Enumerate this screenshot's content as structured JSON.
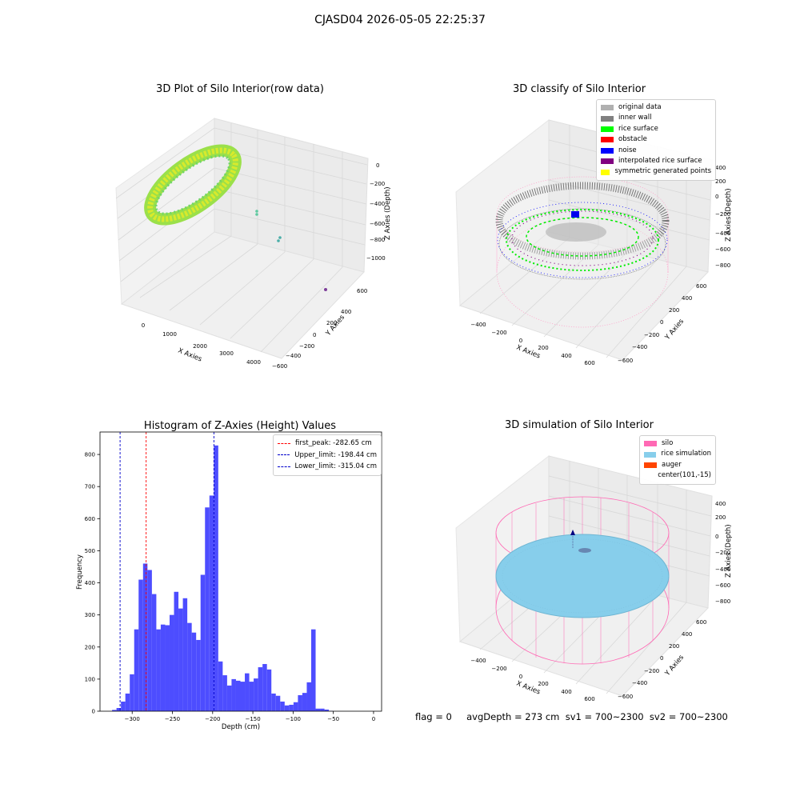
{
  "suptitle": "CJASD04 2026-05-05 22:25:37",
  "panels": {
    "raw": {
      "title": "3D Plot of Silo Interior(row data)",
      "xlabel": "X Axies",
      "ylabel": "Y Axies",
      "zlabel": "Z Axies (Depth)",
      "xticks": [
        "0",
        "1000",
        "2000",
        "3000",
        "4000"
      ],
      "yticks": [
        "600",
        "400",
        "200",
        "0",
        "−200",
        "−400",
        "−600"
      ],
      "zticks": [
        "0",
        "−200",
        "−400",
        "−600",
        "−800",
        "−1000"
      ]
    },
    "classify": {
      "title": "3D classify of Silo Interior",
      "xlabel": "X Axies",
      "ylabel": "Y Axies",
      "zlabel": "Z Axies (Depth)",
      "xticks": [
        "−400",
        "−200",
        "0",
        "200",
        "400",
        "600"
      ],
      "yticks": [
        "600",
        "400",
        "200",
        "0",
        "−200",
        "−400",
        "−600"
      ],
      "zticks": [
        "400",
        "200",
        "0",
        "−200",
        "−400",
        "−600",
        "−800"
      ],
      "legend": [
        {
          "label": "original data",
          "color": "#b0b0b0"
        },
        {
          "label": "inner wall",
          "color": "#808080"
        },
        {
          "label": "rice surface",
          "color": "#00ff00"
        },
        {
          "label": "obstacle",
          "color": "#ff0000"
        },
        {
          "label": "noise",
          "color": "#0000ff"
        },
        {
          "label": "interpolated rice surface",
          "color": "#800080"
        },
        {
          "label": "symmetric generated points",
          "color": "#ffff00"
        }
      ]
    },
    "simulation": {
      "title": "3D simulation of Silo Interior",
      "xlabel": "X Axies",
      "ylabel": "Y Axies",
      "zlabel": "Z Axies (Depth)",
      "xticks": [
        "−400",
        "−200",
        "0",
        "200",
        "400",
        "600"
      ],
      "yticks": [
        "600",
        "400",
        "200",
        "0",
        "−200",
        "−400",
        "−600"
      ],
      "zticks": [
        "400",
        "200",
        "0",
        "−200",
        "−400",
        "−600",
        "−800"
      ],
      "legend": [
        {
          "label": "silo",
          "color": "#ff69b4"
        },
        {
          "label": "rice simulation",
          "color": "#87ceeb"
        },
        {
          "label": "auger",
          "color": "#ff4500"
        },
        {
          "label": "center(101,-15)",
          "color": ""
        }
      ]
    }
  },
  "footer": {
    "text": "flag = 0     avgDepth = 273 cm  sv1 = 700~2300  sv2 = 700~2300"
  },
  "chart_data": [
    {
      "type": "heatmap",
      "title": "3D Plot of Silo Interior(row data)",
      "xlabel": "X Axies",
      "ylabel": "Y Axies",
      "zlabel": "Z Axies (Depth)",
      "xlim": [
        -400,
        4400
      ],
      "ylim": [
        -700,
        700
      ],
      "zlim": [
        -1100,
        50
      ]
    },
    {
      "type": "scatter",
      "title": "3D classify of Silo Interior",
      "xlabel": "X Axies",
      "ylabel": "Y Axies",
      "zlabel": "Z Axies (Depth)",
      "xlim": [
        -550,
        750
      ],
      "ylim": [
        -650,
        650
      ],
      "zlim": [
        -900,
        450
      ],
      "series": [
        {
          "name": "original data"
        },
        {
          "name": "inner wall"
        },
        {
          "name": "rice surface"
        },
        {
          "name": "obstacle"
        },
        {
          "name": "noise"
        },
        {
          "name": "interpolated rice surface"
        },
        {
          "name": "symmetric generated points"
        }
      ]
    },
    {
      "type": "bar",
      "title": "Histogram of Z-Axies (Height) Values",
      "xlabel": "Depth (cm)",
      "ylabel": "Frequency",
      "xlim": [
        -340,
        10
      ],
      "ylim": [
        0,
        870
      ],
      "xticks": [
        -300,
        -250,
        -200,
        -150,
        -100,
        -50,
        0
      ],
      "yticks": [
        0,
        100,
        200,
        300,
        400,
        500,
        600,
        700,
        800
      ],
      "bin_start": -325,
      "bin_width": 5.5,
      "values": [
        4,
        10,
        30,
        55,
        115,
        255,
        410,
        460,
        440,
        365,
        255,
        270,
        268,
        300,
        372,
        320,
        352,
        275,
        245,
        222,
        425,
        635,
        672,
        828,
        155,
        112,
        80,
        100,
        95,
        92,
        118,
        92,
        102,
        137,
        147,
        130,
        55,
        48,
        30,
        18,
        20,
        28,
        50,
        57,
        90,
        255,
        8,
        8,
        5,
        1
      ],
      "vlines": [
        {
          "name": "first_peak: -282.65 cm",
          "x": -282.65,
          "color": "#ff0000"
        },
        {
          "name": "Upper_limit: -198.44 cm",
          "x": -198.44,
          "color": "#0000cc"
        },
        {
          "name": "Lower_limit: -315.04 cm",
          "x": -315.04,
          "color": "#0000cc"
        }
      ]
    },
    {
      "type": "scatter",
      "title": "3D simulation of Silo Interior",
      "xlabel": "X Axies",
      "ylabel": "Y Axies",
      "zlabel": "Z Axies (Depth)",
      "xlim": [
        -550,
        750
      ],
      "ylim": [
        -650,
        650
      ],
      "zlim": [
        -900,
        450
      ],
      "series": [
        {
          "name": "silo"
        },
        {
          "name": "rice simulation"
        },
        {
          "name": "auger"
        },
        {
          "name": "center(101,-15)"
        }
      ]
    }
  ]
}
